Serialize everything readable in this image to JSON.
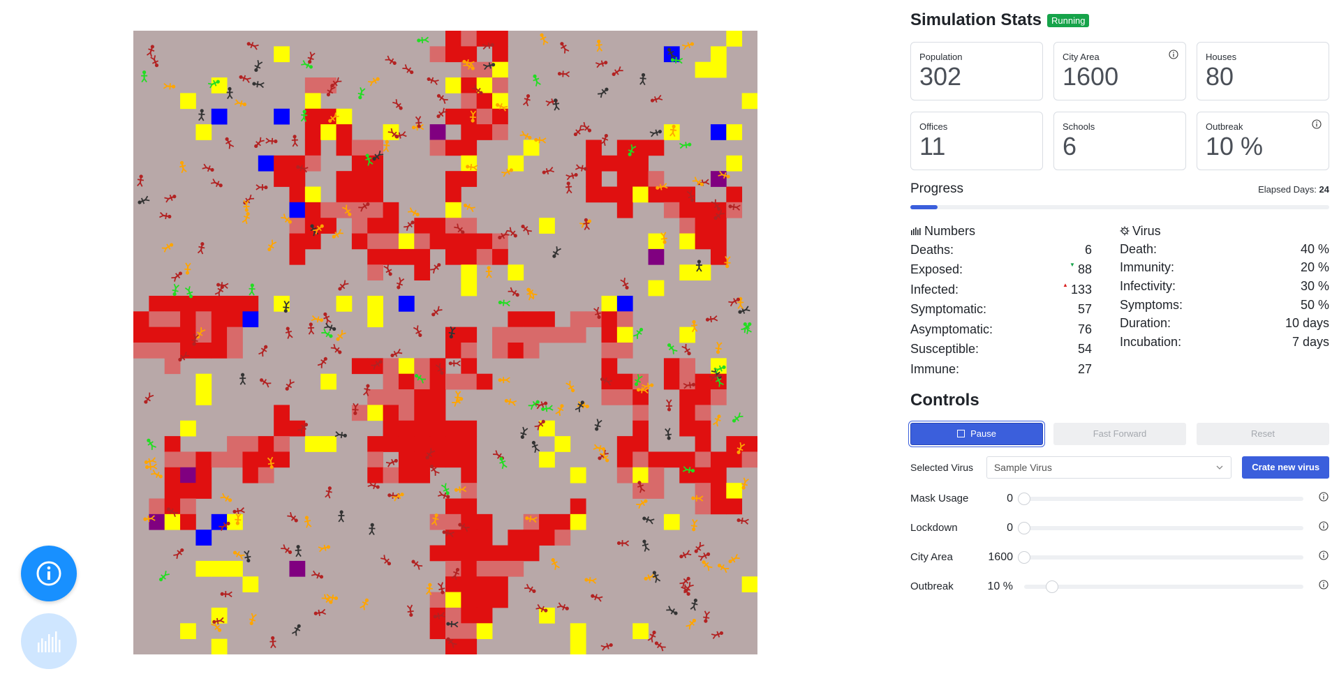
{
  "stats": {
    "title": "Simulation Stats",
    "status": "Running",
    "cards": [
      {
        "label": "Population",
        "value": "302",
        "info": false
      },
      {
        "label": "City Area",
        "value": "1600",
        "info": true
      },
      {
        "label": "Houses",
        "value": "80",
        "info": false
      },
      {
        "label": "Offices",
        "value": "11",
        "info": false
      },
      {
        "label": "Schools",
        "value": "6",
        "info": false
      },
      {
        "label": "Outbreak",
        "value": "10 %",
        "info": true
      }
    ]
  },
  "progress": {
    "title": "Progress",
    "elapsed_label": "Elapsed Days:",
    "elapsed_days": "24",
    "fraction": 0.065
  },
  "numbers": {
    "title": "Numbers",
    "icon": "bar-chart-icon",
    "rows": [
      {
        "label": "Deaths:",
        "value": "6",
        "trend": ""
      },
      {
        "label": "Exposed:",
        "value": "88",
        "trend": "down"
      },
      {
        "label": "Infected:",
        "value": "133",
        "trend": "up"
      },
      {
        "label": "Symptomatic:",
        "value": "57",
        "trend": ""
      },
      {
        "label": "Asymptomatic:",
        "value": "76",
        "trend": ""
      },
      {
        "label": "Susceptible:",
        "value": "54",
        "trend": ""
      },
      {
        "label": "Immune:",
        "value": "27",
        "trend": ""
      }
    ]
  },
  "virus": {
    "title": "Virus",
    "icon": "virus-icon",
    "rows": [
      {
        "label": "Death:",
        "value": "40 %"
      },
      {
        "label": "Immunity:",
        "value": "20 %"
      },
      {
        "label": "Infectivity:",
        "value": "30 %"
      },
      {
        "label": "Symptoms:",
        "value": "50 %"
      },
      {
        "label": "Duration:",
        "value": "10 days"
      },
      {
        "label": "Incubation:",
        "value": "7 days"
      }
    ]
  },
  "controls": {
    "title": "Controls",
    "pause_label": "Pause",
    "fast_forward_label": "Fast Forward",
    "reset_label": "Reset",
    "selected_virus_label": "Selected Virus",
    "selected_virus_value": "Sample Virus",
    "create_virus_label": "Crate new virus",
    "sliders": [
      {
        "label": "Mask Usage",
        "value": "0",
        "fraction": 0.0
      },
      {
        "label": "Lockdown",
        "value": "0",
        "fraction": 0.0
      },
      {
        "label": "City Area",
        "value": "1600",
        "fraction": 0.0
      },
      {
        "label": "Outbreak",
        "value": "10 %",
        "fraction": 0.1
      }
    ]
  },
  "colors": {
    "ground": "#b8a8a8",
    "road_dark": "#e01010",
    "road_light": "#d86a6a",
    "house": "#ffff00",
    "office": "#0000ff",
    "school": "#800080",
    "susceptible": "#333333",
    "exposed": "#ffa500",
    "infected": "#b22222",
    "immune": "#22dd22",
    "accent": "#3b5fdc",
    "badge": "#16a34a"
  }
}
